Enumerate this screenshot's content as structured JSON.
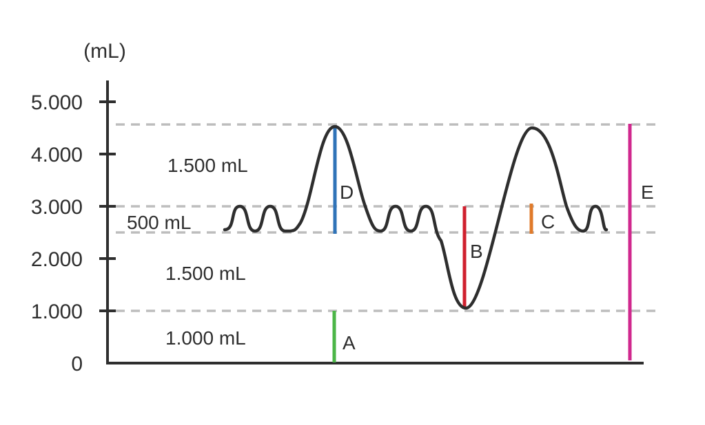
{
  "diagram": {
    "y_unit": "(mL)",
    "y_ticks": [
      {
        "value": 0,
        "label": "0"
      },
      {
        "value": 1000,
        "label": "1.000"
      },
      {
        "value": 2000,
        "label": "2.000"
      },
      {
        "value": 3000,
        "label": "3.000"
      },
      {
        "value": 4000,
        "label": "4.000"
      },
      {
        "value": 5000,
        "label": "5.000"
      }
    ],
    "reference_lines_ml": [
      1000,
      2500,
      3000,
      4500
    ],
    "volume_labels": {
      "inspiratory_reserve": "1.500 mL",
      "tidal": "500 mL",
      "expiratory_reserve": "1.500 mL",
      "residual": "1.000 mL"
    },
    "segments": [
      {
        "letter": "A",
        "from_ml": 0,
        "to_ml": 1000,
        "color": "#4cb648"
      },
      {
        "letter": "B",
        "from_ml": 1000,
        "to_ml": 3000,
        "color": "#d0202e"
      },
      {
        "letter": "C",
        "from_ml": 2500,
        "to_ml": 3000,
        "color": "#e07a2a"
      },
      {
        "letter": "D",
        "from_ml": 2500,
        "to_ml": 4500,
        "color": "#2f73b8"
      },
      {
        "letter": "E",
        "from_ml": 0,
        "to_ml": 4500,
        "color": "#d0288e"
      }
    ],
    "colors": {
      "curve": "#2e2e2e",
      "axis": "#2e2e2e",
      "dashed": "#bdbdbd"
    }
  }
}
